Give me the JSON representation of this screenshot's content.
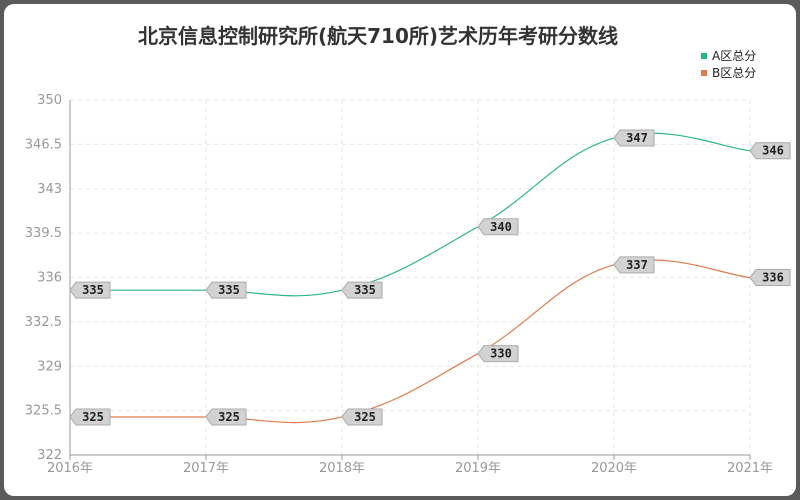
{
  "chart_data": {
    "type": "line",
    "title": "北京信息控制研究所(航天710所)艺术历年考研分数线",
    "categories": [
      "2016年",
      "2017年",
      "2018年",
      "2019年",
      "2020年",
      "2021年"
    ],
    "series": [
      {
        "name": "A区总分",
        "color": "#2db58c",
        "values": [
          335,
          335,
          335,
          340,
          347,
          346
        ]
      },
      {
        "name": "B区总分",
        "color": "#e07a4a",
        "values": [
          325,
          325,
          325,
          330,
          337,
          336
        ]
      }
    ],
    "y_ticks": [
      "322",
      "325.5",
      "329",
      "332.5",
      "336",
      "339.5",
      "343",
      "346.5",
      "350"
    ],
    "ylim": [
      322,
      350
    ],
    "grid": true,
    "legend_position": "top-right",
    "smooth": true
  }
}
